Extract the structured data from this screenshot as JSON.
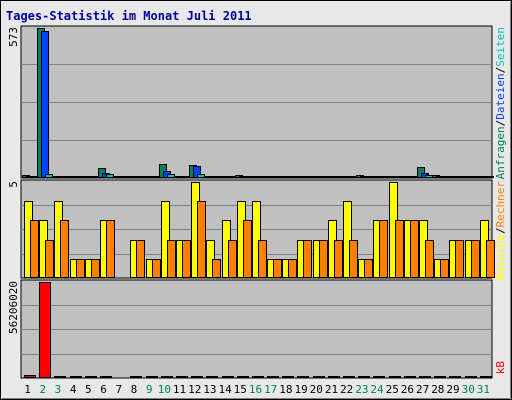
{
  "title": "Tages-Statistik im Monat Juli 2011",
  "colors": {
    "title": "#0000a0",
    "background": "#e8e8e8",
    "panel": "#c0c0c0",
    "hits": "#00805c",
    "files": "#0040ff",
    "pages": "#00c0c0",
    "visits": "#ffff00",
    "sites": "#ff8000",
    "kb": "#ff0000",
    "weekend_day": "#00805c",
    "weekday": "#000000"
  },
  "right_legend": {
    "top": [
      {
        "text": "Anfragen",
        "key": "hits"
      },
      {
        "text": "/",
        "key": "weekday"
      },
      {
        "text": "Dateien",
        "key": "files"
      },
      {
        "text": "/",
        "key": "weekday"
      },
      {
        "text": "Seiten",
        "key": "pages"
      }
    ],
    "middle": [
      {
        "text": "Besuche",
        "key": "visits"
      },
      {
        "text": "/",
        "key": "weekday"
      },
      {
        "text": "Rechner",
        "key": "sites"
      }
    ],
    "bottom": [
      {
        "text": "kB",
        "key": "kb"
      }
    ]
  },
  "chart_data": [
    {
      "type": "bar",
      "panel": "top",
      "y_max_label": "573",
      "ylim": [
        0,
        573
      ],
      "categories": [
        "1",
        "2",
        "3",
        "4",
        "5",
        "6",
        "7",
        "8",
        "9",
        "10",
        "11",
        "12",
        "13",
        "14",
        "15",
        "16",
        "17",
        "18",
        "19",
        "20",
        "21",
        "22",
        "23",
        "24",
        "25",
        "26",
        "27",
        "28",
        "29",
        "30",
        "31"
      ],
      "weekend_days": [
        "2",
        "3",
        "9",
        "10",
        "16",
        "17",
        "23",
        "24",
        "30",
        "31"
      ],
      "series": [
        {
          "name": "Anfragen",
          "key": "hits",
          "values": [
            12,
            573,
            6,
            6,
            5,
            38,
            3,
            7,
            5,
            52,
            6,
            48,
            5,
            8,
            10,
            9,
            6,
            5,
            6,
            7,
            8,
            9,
            10,
            6,
            8,
            7,
            42,
            10,
            6,
            6,
            7
          ]
        },
        {
          "name": "Dateien",
          "key": "files",
          "values": [
            8,
            560,
            4,
            4,
            3,
            20,
            2,
            5,
            3,
            25,
            4,
            45,
            3,
            5,
            7,
            6,
            4,
            3,
            4,
            5,
            5,
            6,
            7,
            4,
            5,
            5,
            20,
            6,
            4,
            4,
            5
          ]
        },
        {
          "name": "Seiten",
          "key": "pages",
          "values": [
            7,
            14,
            5,
            4,
            3,
            15,
            2,
            4,
            3,
            15,
            3,
            16,
            3,
            4,
            8,
            6,
            3,
            3,
            3,
            4,
            4,
            5,
            7,
            3,
            4,
            4,
            11,
            6,
            3,
            3,
            4
          ]
        }
      ]
    },
    {
      "type": "bar",
      "panel": "middle",
      "y_max_label": "5",
      "ylim": [
        0,
        5
      ],
      "categories": [
        "1",
        "2",
        "3",
        "4",
        "5",
        "6",
        "7",
        "8",
        "9",
        "10",
        "11",
        "12",
        "13",
        "14",
        "15",
        "16",
        "17",
        "18",
        "19",
        "20",
        "21",
        "22",
        "23",
        "24",
        "25",
        "26",
        "27",
        "28",
        "29",
        "30",
        "31"
      ],
      "series": [
        {
          "name": "Besuche",
          "key": "visits",
          "values": [
            4,
            3,
            4,
            1,
            1,
            3,
            0,
            2,
            1,
            4,
            2,
            5,
            2,
            3,
            4,
            4,
            1,
            1,
            2,
            2,
            3,
            4,
            1,
            3,
            5,
            3,
            3,
            1,
            2,
            2,
            3
          ]
        },
        {
          "name": "Rechner",
          "key": "sites",
          "values": [
            3,
            2,
            3,
            1,
            1,
            3,
            0,
            2,
            1,
            2,
            2,
            4,
            1,
            2,
            3,
            2,
            1,
            1,
            2,
            2,
            2,
            2,
            1,
            3,
            3,
            3,
            2,
            1,
            2,
            2,
            2
          ]
        }
      ]
    },
    {
      "type": "bar",
      "panel": "bottom",
      "y_max_label": "56206020",
      "ylim": [
        0,
        56206020
      ],
      "categories": [
        "1",
        "2",
        "3",
        "4",
        "5",
        "6",
        "7",
        "8",
        "9",
        "10",
        "11",
        "12",
        "13",
        "14",
        "15",
        "16",
        "17",
        "18",
        "19",
        "20",
        "21",
        "22",
        "23",
        "24",
        "25",
        "26",
        "27",
        "28",
        "29",
        "30",
        "31"
      ],
      "series": [
        {
          "name": "kB",
          "key": "kb",
          "values": [
            1600000,
            56206020,
            250000,
            250000,
            200000,
            900000,
            0,
            250000,
            200000,
            1000000,
            250000,
            1300000,
            200000,
            250000,
            300000,
            250000,
            200000,
            200000,
            200000,
            250000,
            250000,
            250000,
            300000,
            200000,
            250000,
            250000,
            900000,
            250000,
            200000,
            200000,
            250000
          ]
        }
      ]
    }
  ]
}
